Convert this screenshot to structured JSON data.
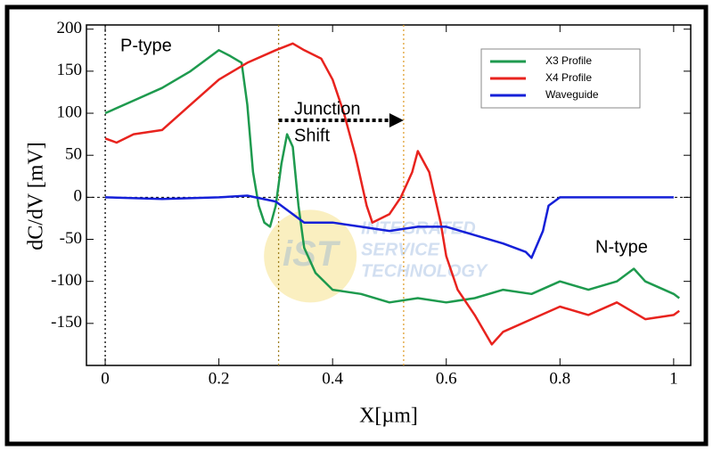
{
  "chart_data": {
    "type": "line",
    "xlabel": "X[µm]",
    "ylabel": "dC/dV [mV]",
    "xlim": [
      -0.033,
      1.03
    ],
    "ylim": [
      -200,
      205
    ],
    "xticks": [
      0,
      0.2,
      0.4,
      0.6,
      0.8,
      1
    ],
    "yticks": [
      200,
      150,
      100,
      50,
      0,
      -50,
      -100,
      -150
    ],
    "legend": "upper right",
    "zero_line": 0,
    "reference_lines": [
      {
        "x": 0,
        "color": "#000000"
      },
      {
        "x": 0.305,
        "color": "#a08020"
      },
      {
        "x": 0.525,
        "color": "#e0a030"
      }
    ],
    "annotations": [
      "P-type",
      "N-type",
      "Junction",
      "Shift"
    ],
    "watermark": [
      "iST",
      "INTEGRATED",
      "SERVICE",
      "TECHNOLOGY"
    ],
    "series": [
      {
        "name": "X3 Profile",
        "color": "#1e9a4e",
        "x": [
          0,
          0.05,
          0.1,
          0.15,
          0.2,
          0.22,
          0.24,
          0.25,
          0.26,
          0.27,
          0.28,
          0.29,
          0.3,
          0.31,
          0.32,
          0.33,
          0.34,
          0.35,
          0.37,
          0.4,
          0.45,
          0.5,
          0.55,
          0.6,
          0.65,
          0.7,
          0.75,
          0.8,
          0.85,
          0.9,
          0.93,
          0.95,
          1.0,
          1.01
        ],
        "values": [
          100,
          115,
          130,
          150,
          175,
          168,
          160,
          110,
          30,
          -10,
          -30,
          -35,
          -10,
          40,
          75,
          60,
          -10,
          -60,
          -90,
          -110,
          -115,
          -125,
          -120,
          -125,
          -120,
          -110,
          -115,
          -100,
          -110,
          -100,
          -85,
          -100,
          -115,
          -120
        ]
      },
      {
        "name": "X4 Profile",
        "color": "#e8231e",
        "x": [
          0,
          0.02,
          0.05,
          0.1,
          0.15,
          0.2,
          0.25,
          0.3,
          0.33,
          0.35,
          0.38,
          0.4,
          0.42,
          0.44,
          0.46,
          0.47,
          0.5,
          0.52,
          0.54,
          0.55,
          0.57,
          0.59,
          0.6,
          0.62,
          0.65,
          0.68,
          0.7,
          0.75,
          0.8,
          0.85,
          0.9,
          0.95,
          1.0,
          1.01
        ],
        "values": [
          70,
          65,
          75,
          80,
          110,
          140,
          160,
          175,
          183,
          175,
          165,
          140,
          100,
          50,
          -10,
          -30,
          -20,
          0,
          30,
          55,
          30,
          -30,
          -70,
          -110,
          -140,
          -175,
          -160,
          -145,
          -130,
          -140,
          -125,
          -145,
          -140,
          -135
        ]
      },
      {
        "name": "Waveguide",
        "color": "#1520d8",
        "x": [
          0,
          0.1,
          0.2,
          0.25,
          0.3,
          0.35,
          0.4,
          0.45,
          0.5,
          0.55,
          0.6,
          0.65,
          0.7,
          0.74,
          0.75,
          0.77,
          0.78,
          0.8,
          0.9,
          1.0
        ],
        "values": [
          0,
          -2,
          0,
          2,
          -5,
          -30,
          -30,
          -35,
          -40,
          -35,
          -35,
          -45,
          -55,
          -65,
          -72,
          -40,
          -10,
          0,
          0,
          0
        ]
      }
    ]
  }
}
